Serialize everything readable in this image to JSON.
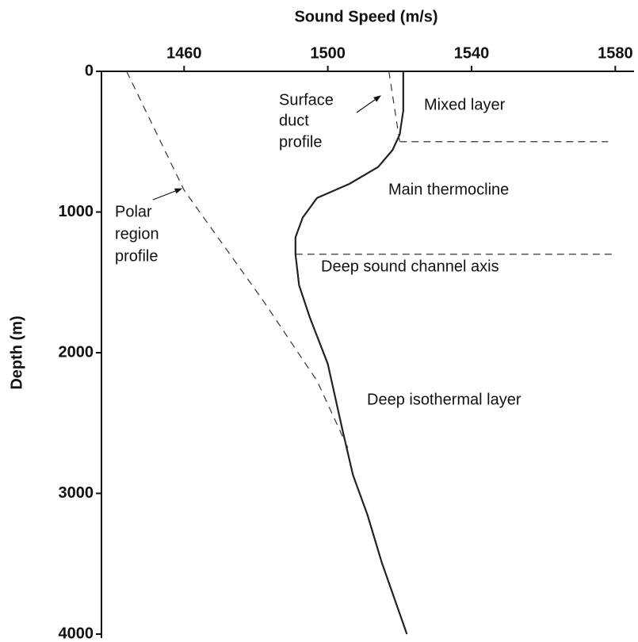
{
  "chart_data": {
    "type": "line",
    "xlabel": "Sound Speed (m/s)",
    "ylabel": "Depth (m)",
    "xlim": [
      1437,
      1585
    ],
    "xticks": [
      1460,
      1500,
      1540,
      1580
    ],
    "ylim": [
      0,
      4000
    ],
    "yticks": [
      0,
      1000,
      2000,
      3000,
      4000
    ],
    "y_inverted": true,
    "series": [
      {
        "color": "#222222",
        "dashed": false,
        "x": [
          1521,
          1521,
          1520,
          1518,
          1514,
          1506,
          1497,
          1493,
          1491,
          1491,
          1492,
          1495,
          1500,
          1504,
          1507,
          1511,
          1515,
          1522
        ],
        "values": [
          0,
          280,
          450,
          560,
          680,
          800,
          900,
          1040,
          1180,
          1300,
          1520,
          1750,
          2080,
          2540,
          2870,
          3150,
          3490,
          4000
        ]
      },
      {
        "color": "#333333",
        "dashed": true,
        "x": [
          1444,
          1460,
          1482,
          1497,
          1506
        ],
        "values": [
          0,
          845,
          1630,
          2200,
          2700
        ]
      },
      {
        "color": "#333333",
        "dashed": true,
        "x": [
          1517,
          1520
        ],
        "values": [
          0,
          500
        ]
      }
    ],
    "hlines": [
      {
        "y": 500,
        "x": [
          1520,
          1578
        ]
      },
      {
        "y": 1300,
        "x": [
          1491,
          1580
        ]
      }
    ],
    "annotations": {
      "surface_duct": [
        "Surface",
        "duct",
        "profile"
      ],
      "mixed_layer": "Mixed layer",
      "main_thermocline": "Main thermocline",
      "deep_channel": "Deep sound channel axis",
      "deep_isothermal": "Deep isothermal layer",
      "polar": [
        "Polar",
        "region",
        "profile"
      ]
    }
  }
}
